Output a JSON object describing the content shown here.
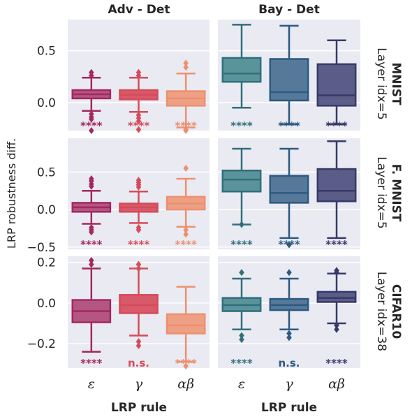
{
  "chart_data": {
    "type": "box",
    "ylabel": "LRP robustness diff.",
    "xlabel": "LRP rule",
    "columns": [
      "Adv - Det",
      "Bay - Det"
    ],
    "rows": [
      {
        "title": "MNIST",
        "subtitle": "Layer idx=5",
        "ylim": [
          -0.27,
          0.8
        ],
        "yticks": [
          0.0,
          0.5
        ],
        "ytick_labels": [
          "0.0",
          "0.5"
        ]
      },
      {
        "title": "F. MNIST",
        "subtitle": "Layer idx=5",
        "ylim": [
          -0.53,
          0.95
        ],
        "yticks": [
          -0.5,
          0.0,
          0.5
        ],
        "ytick_labels": [
          "−0.5",
          "0.0",
          "0.5"
        ]
      },
      {
        "title": "CIFAR10",
        "subtitle": "Layer idx=38",
        "ylim": [
          -0.32,
          0.23
        ],
        "yticks": [
          -0.2,
          0.0,
          0.2
        ],
        "ytick_labels": [
          "−0.2",
          "0.0",
          "0.2"
        ]
      }
    ],
    "categories": [
      "ε",
      "γ",
      "αβ"
    ],
    "colors": {
      "Adv - Det": {
        "fill": [
          "#b35682",
          "#d85a6a",
          "#eda084"
        ],
        "edge": [
          "#a3285f",
          "#d44c5a",
          "#ec9070"
        ]
      },
      "Bay - Det": {
        "fill": [
          "#5b939a",
          "#56799a",
          "#5b5c88"
        ],
        "edge": [
          "#2f6f7c",
          "#2c5a82",
          "#363a6a"
        ]
      }
    },
    "panels": [
      {
        "row": 0,
        "col": "Adv - Det",
        "boxes": [
          {
            "q1": 0.04,
            "median": 0.08,
            "q3": 0.12,
            "whislo": -0.08,
            "whishi": 0.24,
            "fliers": [
              0.29,
              0.26,
              -0.11,
              -0.14,
              -0.16,
              -0.27
            ],
            "sig": "****"
          },
          {
            "q1": 0.03,
            "median": 0.075,
            "q3": 0.12,
            "whislo": -0.09,
            "whishi": 0.24,
            "fliers": [
              0.29,
              0.26,
              -0.12,
              -0.15,
              -0.18,
              -0.26
            ],
            "sig": "****"
          },
          {
            "q1": -0.03,
            "median": 0.04,
            "q3": 0.11,
            "whislo": -0.24,
            "whishi": 0.28,
            "fliers": [
              0.38,
              0.34,
              -0.26,
              -0.27
            ],
            "sig": "****"
          }
        ]
      },
      {
        "row": 0,
        "col": "Bay - Det",
        "boxes": [
          {
            "q1": 0.2,
            "median": 0.28,
            "q3": 0.43,
            "whislo": -0.05,
            "whishi": 0.75,
            "fliers": [],
            "sig": "****"
          },
          {
            "q1": 0.02,
            "median": 0.1,
            "q3": 0.42,
            "whislo": -0.21,
            "whishi": 0.74,
            "fliers": [],
            "sig": "****"
          },
          {
            "q1": -0.03,
            "median": 0.07,
            "q3": 0.37,
            "whislo": -0.21,
            "whishi": 0.6,
            "fliers": [],
            "sig": "****"
          }
        ]
      },
      {
        "row": 1,
        "col": "Adv - Det",
        "boxes": [
          {
            "q1": -0.03,
            "median": 0.03,
            "q3": 0.09,
            "whislo": -0.19,
            "whishi": 0.25,
            "fliers": [
              0.41,
              0.38,
              0.34,
              0.31,
              -0.24,
              -0.27,
              -0.3
            ],
            "sig": "****"
          },
          {
            "q1": -0.03,
            "median": 0.03,
            "q3": 0.08,
            "whislo": -0.18,
            "whishi": 0.24,
            "fliers": [
              0.39,
              0.36,
              0.33,
              0.3,
              -0.24,
              -0.27
            ],
            "sig": "****"
          },
          {
            "q1": 0.0,
            "median": 0.08,
            "q3": 0.17,
            "whislo": -0.23,
            "whishi": 0.41,
            "fliers": [
              0.55,
              -0.27,
              -0.33
            ],
            "sig": "****"
          }
        ]
      },
      {
        "row": 1,
        "col": "Bay - Det",
        "boxes": [
          {
            "q1": 0.24,
            "median": 0.4,
            "q3": 0.52,
            "whislo": -0.2,
            "whishi": 0.81,
            "fliers": [
              -0.2
            ],
            "sig": "****"
          },
          {
            "q1": 0.09,
            "median": 0.22,
            "q3": 0.45,
            "whislo": -0.38,
            "whishi": 0.81,
            "fliers": [
              -0.47
            ],
            "sig": "****"
          },
          {
            "q1": 0.11,
            "median": 0.25,
            "q3": 0.54,
            "whislo": -0.38,
            "whishi": 0.91,
            "fliers": [],
            "sig": "****"
          }
        ]
      },
      {
        "row": 2,
        "col": "Adv - Det",
        "boxes": [
          {
            "q1": -0.095,
            "median": -0.04,
            "q3": 0.015,
            "whislo": -0.24,
            "whishi": 0.17,
            "fliers": [
              0.21,
              0.19
            ],
            "sig": "****"
          },
          {
            "q1": -0.05,
            "median": -0.01,
            "q3": 0.04,
            "whislo": -0.16,
            "whishi": 0.17,
            "fliers": [
              0.19,
              0.17,
              -0.19,
              -0.21
            ],
            "sig": "n.s."
          },
          {
            "q1": -0.15,
            "median": -0.11,
            "q3": -0.055,
            "whislo": -0.29,
            "whishi": 0.08,
            "fliers": [
              -0.31
            ],
            "sig": "****"
          }
        ]
      },
      {
        "row": 2,
        "col": "Bay - Det",
        "boxes": [
          {
            "q1": -0.04,
            "median": -0.01,
            "q3": 0.025,
            "whislo": -0.13,
            "whishi": 0.12,
            "fliers": [
              0.15,
              -0.16,
              -0.18
            ],
            "sig": "****"
          },
          {
            "q1": -0.035,
            "median": -0.01,
            "q3": 0.02,
            "whislo": -0.13,
            "whishi": 0.12,
            "fliers": [
              0.15,
              -0.15,
              -0.17
            ],
            "sig": "n.s."
          },
          {
            "q1": 0.005,
            "median": 0.025,
            "q3": 0.055,
            "whislo": -0.1,
            "whishi": 0.145,
            "fliers": [
              0.16,
              0.15,
              -0.11,
              -0.13
            ],
            "sig": "****"
          }
        ]
      }
    ]
  }
}
